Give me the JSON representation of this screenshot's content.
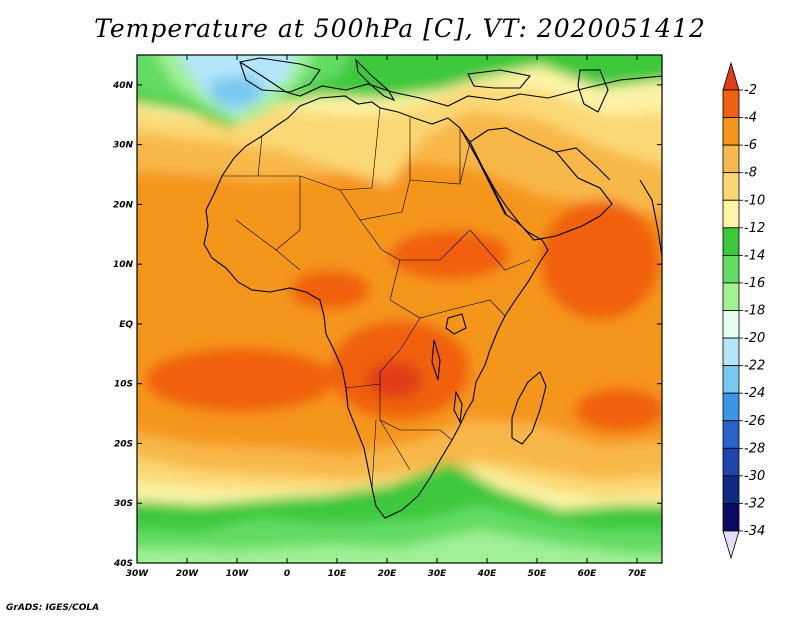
{
  "title": "Temperature at 500hPa [C], VT: 2020051412",
  "footer": "GrADS: IGES/COLA",
  "map": {
    "lon_range": [
      -30,
      75
    ],
    "lat_range": [
      -40,
      45
    ],
    "lon_ticks": [
      {
        "value": -30,
        "label": "30W"
      },
      {
        "value": -20,
        "label": "20W"
      },
      {
        "value": -10,
        "label": "10W"
      },
      {
        "value": 0,
        "label": "0"
      },
      {
        "value": 10,
        "label": "10E"
      },
      {
        "value": 20,
        "label": "20E"
      },
      {
        "value": 30,
        "label": "30E"
      },
      {
        "value": 40,
        "label": "40E"
      },
      {
        "value": 50,
        "label": "50E"
      },
      {
        "value": 60,
        "label": "60E"
      },
      {
        "value": 70,
        "label": "70E"
      }
    ],
    "lat_ticks": [
      {
        "value": 40,
        "label": "40N"
      },
      {
        "value": 30,
        "label": "30N"
      },
      {
        "value": 20,
        "label": "20N"
      },
      {
        "value": 10,
        "label": "10N"
      },
      {
        "value": 0,
        "label": "EQ"
      },
      {
        "value": -10,
        "label": "10S"
      },
      {
        "value": -20,
        "label": "20S"
      },
      {
        "value": -30,
        "label": "30S"
      },
      {
        "value": -40,
        "label": "40S"
      }
    ]
  },
  "colorbar": {
    "labels": [
      "-2",
      "-4",
      "-6",
      "-8",
      "-10",
      "-12",
      "-14",
      "-16",
      "-18",
      "-20",
      "-22",
      "-24",
      "-26",
      "-28",
      "-30",
      "-32",
      "-34"
    ],
    "colors": [
      "#e03c19",
      "#f06010",
      "#f5961e",
      "#f8b84a",
      "#fbd876",
      "#fcf4a6",
      "#3cc83c",
      "#64dc64",
      "#a0f096",
      "#e6fff0",
      "#b4e6fa",
      "#78c8f0",
      "#3c96e6",
      "#2864c8",
      "#1e46aa",
      "#0f2882",
      "#0a0a64",
      "#e6dcf5"
    ]
  }
}
